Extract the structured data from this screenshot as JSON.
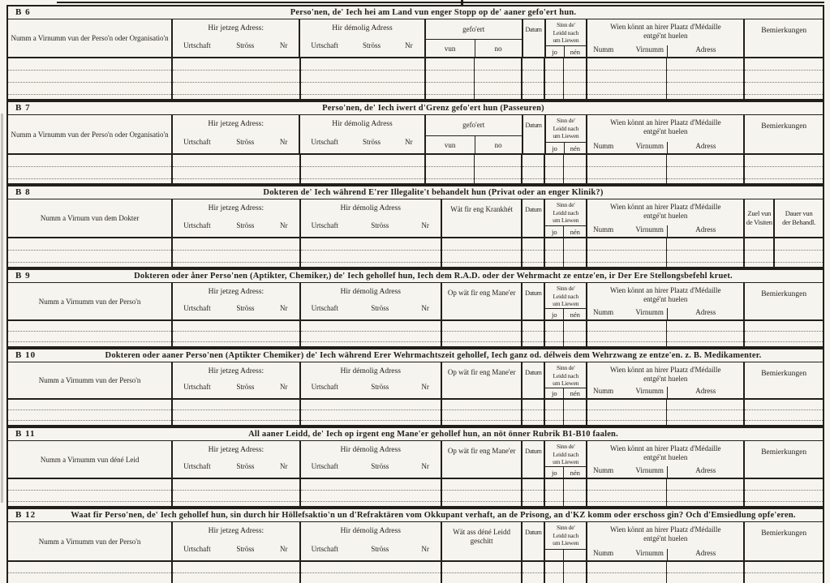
{
  "sections": [
    {
      "id": "B 6",
      "title": "Perso'nen, de' Iech hei am Land vun enger Stopp  op de'  aaner gefo'ert hun.",
      "name_col": "Numm a Virnumm vun der Perso'n oder Organisatio'n",
      "addr_now_label": "Hir jetzeg Adress:",
      "addr_old_label": "Hir démolig Adress",
      "addr_subs": [
        "Urtschaft",
        "Ströss",
        "Nr"
      ],
      "mid": {
        "label": "gefo'ert",
        "label2": "",
        "split": true,
        "subs": [
          "vun",
          "no"
        ]
      },
      "datum_label": "Datum",
      "alive": {
        "l1": "Sinn  de'",
        "l2": "Leidd  nach",
        "l3": "um Liewen",
        "jo": "jo",
        "nen": "nén"
      },
      "medal": {
        "l1": "Wien könnt an hirer Plaatz d'Médaille",
        "l2": "entgé'nt huelen",
        "s1": "Numm",
        "s2": "Virnumm",
        "s3": "Adress"
      },
      "right": {
        "double": false,
        "label": "Bemierkungen"
      },
      "rows": 3
    },
    {
      "id": "B 7",
      "title": "Perso'nen, de' Iech iwert d'Grenz gefo'ert hun (Passeuren)",
      "name_col": "Numm a Virnumm vun der Perso'n oder Organisatio'n",
      "addr_now_label": "Hir jetzeg Adress:",
      "addr_old_label": "Hir démolig Adress",
      "addr_subs": [
        "Urtschaft",
        "Ströss",
        "Nr"
      ],
      "mid": {
        "label": "gefo'ert",
        "label2": "",
        "split": true,
        "subs": [
          "vun",
          "no"
        ]
      },
      "datum_label": "Datum",
      "alive": {
        "l1": "Sinn  de'",
        "l2": "Leidd  nach",
        "l3": "um Liewen",
        "jo": "jo",
        "nen": "nén"
      },
      "medal": {
        "l1": "Wien könnt an hirer Plaatz d'Médaille",
        "l2": "entgé'nt huelen",
        "s1": "Numm",
        "s2": "Virnumm",
        "s3": "Adress"
      },
      "right": {
        "double": false,
        "label": "Bemierkungen"
      },
      "rows": 2
    },
    {
      "id": "B 8",
      "title": "Dokteren de' Iech während E'rer Illegalite't behandelt hun (Privat oder an enger Klinik?)",
      "name_col": "Numm a Virnum vun dem Dokter",
      "addr_now_label": "Hir jetzeg Adress:",
      "addr_old_label": "Hir démolig Adress",
      "addr_subs": [
        "Urtschaft",
        "Ströss",
        "Nr"
      ],
      "mid": {
        "label": "Wät fir eng Krankhét",
        "label2": "",
        "split": false,
        "subs": [
          "",
          ""
        ]
      },
      "datum_label": "Datum",
      "alive": {
        "l1": "Sinn  de'",
        "l2": "Leidd  nach",
        "l3": "um Liewen",
        "jo": "jo",
        "nen": "nén"
      },
      "medal": {
        "l1": "Wien könnt an hirer Plaatz d'Médaille",
        "l2": "entgé'nt huelen",
        "s1": "Numm",
        "s2": "Virnumm",
        "s3": "Adress"
      },
      "right": {
        "double": true,
        "a1": "Zuel vun",
        "a2": "de Visiten",
        "b1": "Dauer vun",
        "b2": "der Behandl."
      },
      "rows": 2
    },
    {
      "id": "B 9",
      "title": "Dokteren oder åner Perso'nen (Aptikter, Chemiker,) de' Iech gehollef hun, Iech dem R.A.D. oder der Wehrmacht ze entze'en, ir Der Ere Stellongsbefehl kruet.",
      "name_col": "Numm a Virnumm vun der Perso'n",
      "addr_now_label": "Hir jetzeg Adress:",
      "addr_old_label": "Hir démolig Adress",
      "addr_subs": [
        "Urtschaft",
        "Ströss",
        "Nr"
      ],
      "mid": {
        "label": "Op wät fir eng Mane'er",
        "label2": "",
        "split": false,
        "subs": [
          "",
          ""
        ]
      },
      "datum_label": "Datum",
      "alive": {
        "l1": "Sinn  de'",
        "l2": "Leidd  nach",
        "l3": "um Liewen",
        "jo": "jo",
        "nen": "nén"
      },
      "medal": {
        "l1": "Wien könnt an hirer Plaatz d'Médaille",
        "l2": "entgé'nt huelen",
        "s1": "Numm",
        "s2": "Virnumm",
        "s3": "Adress"
      },
      "right": {
        "double": false,
        "label": "Bemierkungen"
      },
      "rows": 2
    },
    {
      "id": "B 10",
      "title": "Dokteren oder aaner Perso'nen (Aptikter Chemiker) de' Iech während Erer Wehrmachtszeit gehollef, Iech ganz od. délweis dem Wehrzwang ze entze'en. z. B. Medikamenter.",
      "name_col": "Numm a Virnumm vun der Perso'n",
      "addr_now_label": "Hir jetzeg Adress:",
      "addr_old_label": "Hir démolig Adress",
      "addr_subs": [
        "Urtschaft",
        "Ströss",
        "Nr"
      ],
      "mid": {
        "label": "Op wät fir eng Mane'er",
        "label2": "",
        "split": false,
        "subs": [
          "",
          ""
        ]
      },
      "datum_label": "Datum",
      "alive": {
        "l1": "Sinn  de'",
        "l2": "Leidd  nach",
        "l3": "um Liewen",
        "jo": "jo",
        "nen": "nén"
      },
      "medal": {
        "l1": "Wien könnt an hirer Plaatz d'Médaille",
        "l2": "entgé'nt huelen",
        "s1": "Numm",
        "s2": "Virnumm",
        "s3": "Adress"
      },
      "right": {
        "double": false,
        "label": "Bemierkungen"
      },
      "rows": 2
    },
    {
      "id": "B 11",
      "title": "All aaner Leidd, de' Iech op irgent eng Mane'er  gehollef hun, an nöt önner Rubrik B1-B10 faalen.",
      "name_col": "Numm a Virnumm vun déné Leid",
      "addr_now_label": "Hir jetzeg Adress:",
      "addr_old_label": "Hir démolig Adress",
      "addr_subs": [
        "Urtschaft",
        "Ströss",
        "Nr"
      ],
      "mid": {
        "label": "Op wät fir eng Mane'er",
        "label2": "",
        "split": false,
        "subs": [
          "",
          ""
        ]
      },
      "datum_label": "Datum",
      "alive": {
        "l1": "Sinn  de'",
        "l2": "Leidd  nach",
        "l3": "um Liewen",
        "jo": "jo",
        "nen": "nén"
      },
      "medal": {
        "l1": "Wien könnt an hirer Plaatz d'Médaille",
        "l2": "entgé'nt huelen",
        "s1": "Numm",
        "s2": "Virnumm",
        "s3": "Adress"
      },
      "right": {
        "double": false,
        "label": "Bemierkungen"
      },
      "rows": 2
    },
    {
      "id": "B 12",
      "title": "Waat fir Perso'nen, de' Iech gehollef hun, sin durch hir Höllefsaktio'n un d'Refraktären vom Okkupant verhaft, an de Prisong, an d'KZ komm oder  erschoss gin? Och d'Emsiedlung opfe'eren.",
      "name_col": "Numm a Virnumm vun der Perso'n",
      "addr_now_label": "Hir jetzeg Adress:",
      "addr_old_label": "Hir démolig Adress",
      "addr_subs": [
        "Urtschaft",
        "Ströss",
        "Nr"
      ],
      "mid": {
        "label": "Wät ass déné Leidd",
        "label2": "geschitt",
        "split": false,
        "subs": [
          "",
          ""
        ]
      },
      "datum_label": "Datum",
      "alive": {
        "l1": "Sinn  de'",
        "l2": "Leidd  nach",
        "l3": "um Liewen",
        "jo": "",
        "nen": ""
      },
      "medal": {
        "l1": "Wien könnt an hirer Plaatz d'Médaille",
        "l2": "entgé'nt huelen",
        "s1": "Numm",
        "s2": "Virnumm",
        "s3": "Adress"
      },
      "right": {
        "double": false,
        "label": "Bemierkungen"
      },
      "rows": 2
    }
  ]
}
